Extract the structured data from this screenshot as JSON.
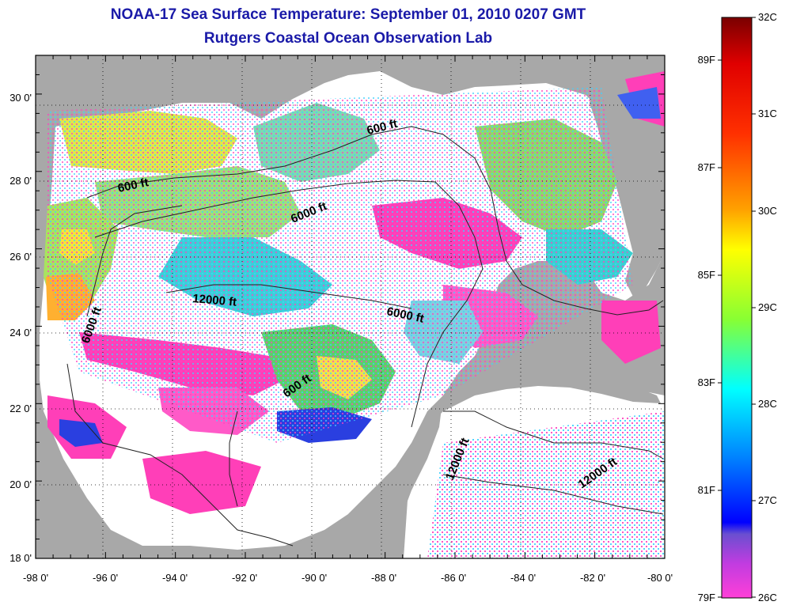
{
  "title": {
    "line1": "NOAA-17 Sea Surface Temperature:  September 01, 2010 0207 GMT",
    "line2": "Rutgers Coastal Ocean Observation Lab"
  },
  "map": {
    "region": "Gulf of Mexico",
    "lon_range": [
      -98,
      -80
    ],
    "lat_range": [
      18,
      31
    ],
    "lon_ticks": [
      "-98 0'",
      "-96 0'",
      "-94 0'",
      "-92 0'",
      "-90 0'",
      "-88 0'",
      "-86 0'",
      "-84 0'",
      "-82 0'",
      "-80 0'"
    ],
    "lat_ticks": [
      "18 0'",
      "20 0'",
      "22 0'",
      "24 0'",
      "26 0'",
      "28 0'",
      "30 0'"
    ],
    "depth_labels": [
      "600 ft",
      "600 ft",
      "6000 ft",
      "12000 ft",
      "6000 ft",
      "6000 ft",
      "600 ft",
      "12000 ft",
      "12000 ft"
    ],
    "colors": {
      "land": "#a8a8a8",
      "no_data": "#ffffff",
      "grid": "#000000"
    }
  },
  "colorbar": {
    "celsius_labels": [
      "32C",
      "31C",
      "30C",
      "29C",
      "28C",
      "27C",
      "26C"
    ],
    "fahrenheit_labels": [
      "89F",
      "87F",
      "85F",
      "83F",
      "81F",
      "79F"
    ],
    "range_c": [
      26,
      32
    ],
    "stops": [
      "#7a0000",
      "#ff0000",
      "#ff8c00",
      "#ffff00",
      "#7cff3c",
      "#00ffff",
      "#0000ff",
      "#8a4fd8",
      "#ff00ff",
      "#ff3fd0"
    ]
  }
}
